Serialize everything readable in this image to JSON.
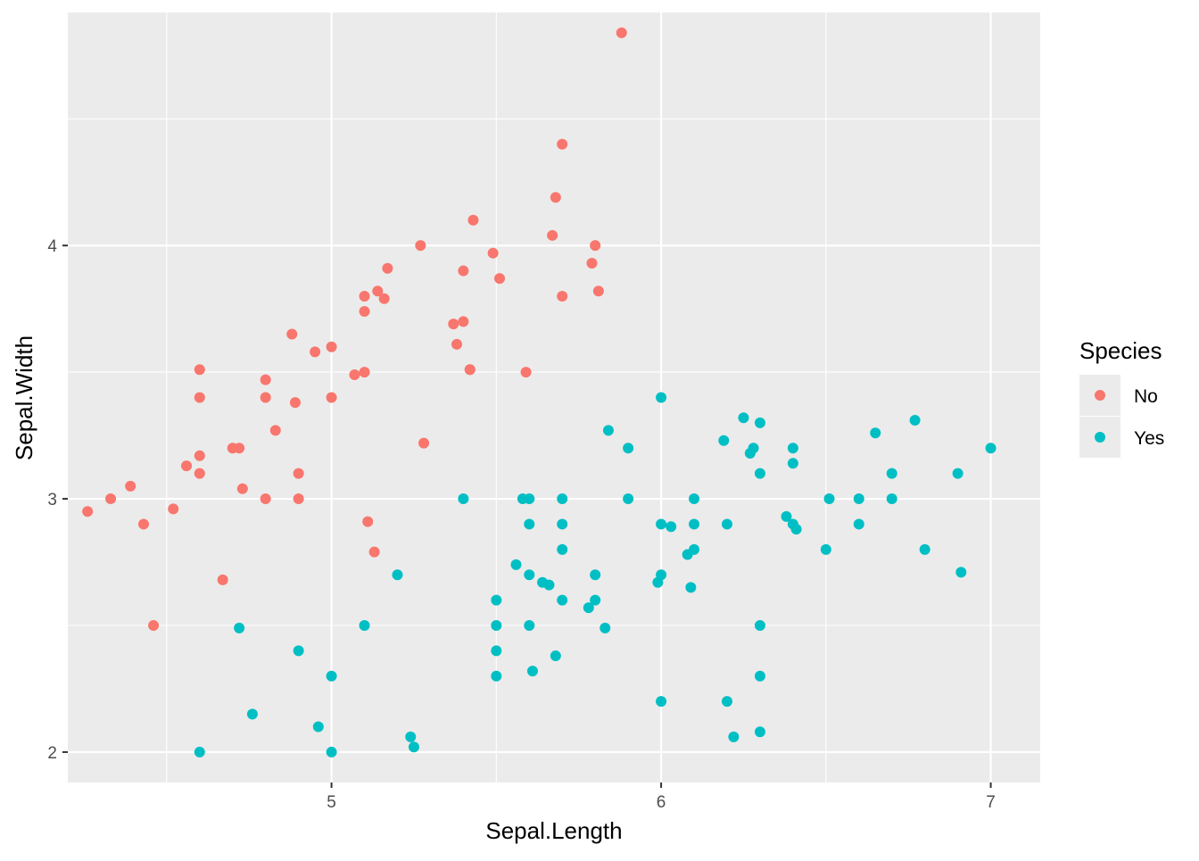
{
  "chart_data": {
    "type": "scatter",
    "title": "",
    "xlabel": "Sepal.Length",
    "ylabel": "Sepal.Width",
    "xlim": [
      4.2,
      7.15
    ],
    "ylim": [
      1.88,
      4.92
    ],
    "xticks": [
      5,
      6,
      7
    ],
    "xtick_labels": [
      "5",
      "6",
      "7"
    ],
    "yticks": [
      2,
      3,
      4
    ],
    "ytick_labels": [
      "2",
      "3",
      "4"
    ],
    "grid": true,
    "legend": {
      "title": "Species",
      "position": "right"
    },
    "series": [
      {
        "name": "No",
        "color": "#f8766d",
        "points": [
          [
            4.26,
            2.95
          ],
          [
            4.33,
            3.0
          ],
          [
            4.39,
            3.05
          ],
          [
            4.43,
            2.9
          ],
          [
            4.46,
            2.5
          ],
          [
            4.52,
            2.96
          ],
          [
            4.56,
            3.13
          ],
          [
            4.6,
            3.51
          ],
          [
            4.6,
            3.4
          ],
          [
            4.6,
            3.17
          ],
          [
            4.6,
            3.1
          ],
          [
            4.67,
            2.68
          ],
          [
            4.7,
            3.2
          ],
          [
            4.72,
            3.2
          ],
          [
            4.73,
            3.04
          ],
          [
            4.8,
            3.47
          ],
          [
            4.8,
            3.4
          ],
          [
            4.8,
            3.0
          ],
          [
            4.83,
            3.27
          ],
          [
            4.88,
            3.65
          ],
          [
            4.89,
            3.38
          ],
          [
            4.9,
            3.1
          ],
          [
            4.9,
            3.0
          ],
          [
            4.95,
            3.58
          ],
          [
            5.0,
            3.6
          ],
          [
            5.0,
            3.4
          ],
          [
            5.07,
            3.49
          ],
          [
            5.1,
            3.8
          ],
          [
            5.1,
            3.74
          ],
          [
            5.1,
            3.5
          ],
          [
            5.11,
            2.91
          ],
          [
            5.13,
            2.79
          ],
          [
            5.14,
            3.82
          ],
          [
            5.16,
            3.79
          ],
          [
            5.17,
            3.91
          ],
          [
            5.27,
            4.0
          ],
          [
            5.28,
            3.22
          ],
          [
            5.37,
            3.69
          ],
          [
            5.38,
            3.61
          ],
          [
            5.4,
            3.9
          ],
          [
            5.4,
            3.7
          ],
          [
            5.42,
            3.51
          ],
          [
            5.42,
            3.51
          ],
          [
            5.43,
            4.1
          ],
          [
            5.49,
            3.97
          ],
          [
            5.51,
            3.87
          ],
          [
            5.59,
            3.5
          ],
          [
            5.67,
            4.04
          ],
          [
            5.68,
            4.19
          ],
          [
            5.7,
            4.4
          ],
          [
            5.7,
            3.8
          ],
          [
            5.79,
            3.93
          ],
          [
            5.8,
            4.0
          ],
          [
            5.81,
            3.82
          ],
          [
            5.88,
            4.84
          ]
        ]
      },
      {
        "name": "Yes",
        "color": "#00bfc4",
        "points": [
          [
            4.6,
            2.0
          ],
          [
            4.72,
            2.49
          ],
          [
            4.76,
            2.15
          ],
          [
            4.9,
            2.4
          ],
          [
            4.96,
            2.1
          ],
          [
            5.0,
            2.3
          ],
          [
            5.0,
            2.0
          ],
          [
            5.1,
            2.5
          ],
          [
            5.2,
            2.7
          ],
          [
            5.24,
            2.06
          ],
          [
            5.25,
            2.02
          ],
          [
            5.4,
            3.0
          ],
          [
            5.5,
            2.6
          ],
          [
            5.5,
            2.5
          ],
          [
            5.5,
            2.4
          ],
          [
            5.5,
            2.3
          ],
          [
            5.56,
            2.74
          ],
          [
            5.58,
            3.0
          ],
          [
            5.6,
            3.0
          ],
          [
            5.6,
            2.9
          ],
          [
            5.6,
            2.7
          ],
          [
            5.6,
            2.5
          ],
          [
            5.61,
            2.32
          ],
          [
            5.64,
            2.67
          ],
          [
            5.66,
            2.66
          ],
          [
            5.68,
            2.38
          ],
          [
            5.7,
            3.0
          ],
          [
            5.7,
            2.9
          ],
          [
            5.7,
            2.8
          ],
          [
            5.7,
            2.6
          ],
          [
            5.78,
            2.57
          ],
          [
            5.8,
            2.7
          ],
          [
            5.8,
            2.6
          ],
          [
            5.83,
            2.49
          ],
          [
            5.84,
            3.27
          ],
          [
            5.9,
            3.2
          ],
          [
            5.9,
            3.0
          ],
          [
            5.99,
            2.67
          ],
          [
            6.0,
            3.4
          ],
          [
            6.0,
            2.9
          ],
          [
            6.0,
            2.7
          ],
          [
            6.0,
            2.2
          ],
          [
            6.03,
            2.89
          ],
          [
            6.08,
            2.78
          ],
          [
            6.09,
            2.65
          ],
          [
            6.1,
            3.0
          ],
          [
            6.1,
            2.9
          ],
          [
            6.1,
            2.8
          ],
          [
            6.19,
            3.23
          ],
          [
            6.2,
            2.9
          ],
          [
            6.2,
            2.2
          ],
          [
            6.22,
            2.06
          ],
          [
            6.25,
            3.32
          ],
          [
            6.27,
            3.18
          ],
          [
            6.28,
            3.2
          ],
          [
            6.3,
            3.3
          ],
          [
            6.3,
            3.1
          ],
          [
            6.3,
            2.5
          ],
          [
            6.3,
            2.3
          ],
          [
            6.3,
            2.08
          ],
          [
            6.38,
            2.93
          ],
          [
            6.4,
            3.2
          ],
          [
            6.4,
            3.14
          ],
          [
            6.4,
            2.9
          ],
          [
            6.41,
            2.88
          ],
          [
            6.5,
            2.8
          ],
          [
            6.51,
            3.0
          ],
          [
            6.6,
            3.0
          ],
          [
            6.6,
            2.9
          ],
          [
            6.65,
            3.26
          ],
          [
            6.7,
            3.1
          ],
          [
            6.7,
            3.0
          ],
          [
            6.77,
            3.31
          ],
          [
            6.8,
            2.8
          ],
          [
            6.9,
            3.1
          ],
          [
            6.91,
            2.71
          ],
          [
            7.0,
            3.2
          ]
        ]
      }
    ]
  }
}
